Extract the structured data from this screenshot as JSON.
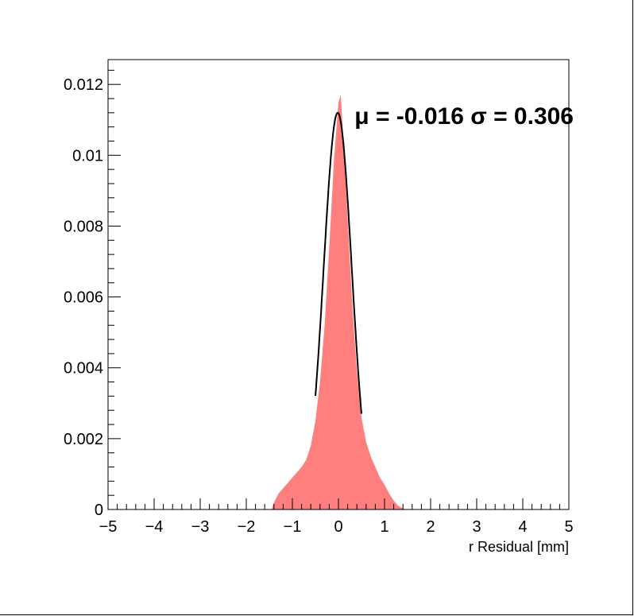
{
  "chart_data": {
    "type": "bar",
    "xlabel": "r Residual [mm]",
    "ylabel": "",
    "xlim": [
      -5,
      5
    ],
    "ylim": [
      0,
      0.0127
    ],
    "x_ticks": [
      "−5",
      "−4",
      "−3",
      "−2",
      "−1",
      "0",
      "1",
      "2",
      "3",
      "4",
      "5"
    ],
    "x_tick_values": [
      -5,
      -4,
      -3,
      -2,
      -1,
      0,
      1,
      2,
      3,
      4,
      5
    ],
    "y_ticks": [
      "0",
      "0.002",
      "0.004",
      "0.006",
      "0.008",
      "0.01",
      "0.012"
    ],
    "y_tick_values": [
      0,
      0.002,
      0.004,
      0.006,
      0.008,
      0.01,
      0.012
    ],
    "annotation": "μ = -0.016 σ = 0.306",
    "histogram": {
      "color": "#ff7f7f",
      "x": [
        -1.45,
        -1.4,
        -1.3,
        -1.2,
        -1.1,
        -1.0,
        -0.9,
        -0.8,
        -0.7,
        -0.6,
        -0.5,
        -0.4,
        -0.3,
        -0.2,
        -0.1,
        0.0,
        0.05,
        0.1,
        0.2,
        0.3,
        0.4,
        0.5,
        0.6,
        0.7,
        0.8,
        0.9,
        1.0,
        1.1,
        1.2,
        1.3,
        1.4,
        1.45
      ],
      "y": [
        0.0,
        0.0002,
        0.00045,
        0.0006,
        0.00075,
        0.0009,
        0.00105,
        0.0012,
        0.0014,
        0.0018,
        0.0025,
        0.0036,
        0.0052,
        0.0074,
        0.0098,
        0.0115,
        0.0117,
        0.0106,
        0.0082,
        0.0058,
        0.0039,
        0.0026,
        0.0019,
        0.0015,
        0.0012,
        0.0009,
        0.0007,
        0.00045,
        0.00025,
        0.0001,
        3e-05,
        0.0
      ]
    },
    "fit": {
      "color": "#000000",
      "mu": -0.016,
      "sigma": 0.306,
      "amplitude": 0.0112,
      "range": [
        -0.5,
        0.5
      ]
    }
  }
}
